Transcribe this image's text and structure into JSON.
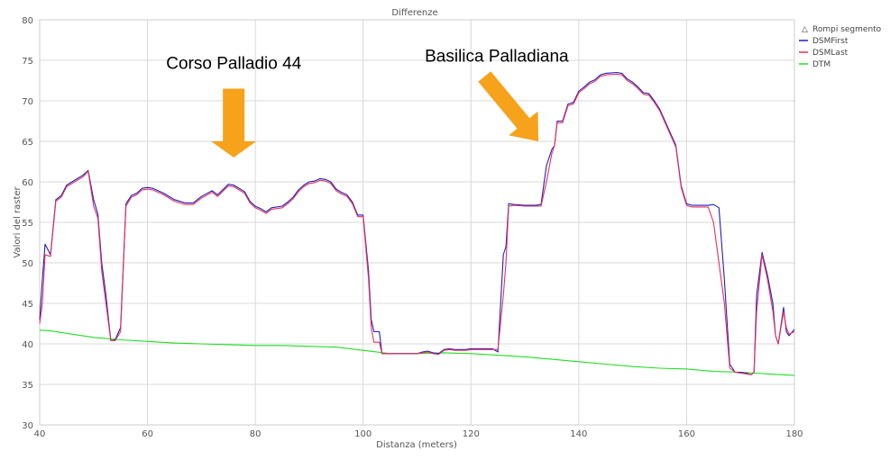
{
  "chart_data": {
    "type": "line",
    "title": "Differenze",
    "xlabel": "Distanza (meters)",
    "ylabel": "Valori del raster",
    "xlim": [
      40,
      180
    ],
    "ylim": [
      30,
      80
    ],
    "x_ticks": [
      40,
      60,
      80,
      100,
      120,
      140,
      160,
      180
    ],
    "y_ticks": [
      30,
      35,
      40,
      45,
      50,
      55,
      60,
      65,
      70,
      75,
      80
    ],
    "grid": true,
    "legend_position": "top-right",
    "legend_header": "Rompi segmento",
    "series": [
      {
        "name": "DSMFirst",
        "color": "#1f1fbf",
        "points": [
          [
            40,
            43
          ],
          [
            40.5,
            48
          ],
          [
            41,
            52.3
          ],
          [
            42,
            51
          ],
          [
            43,
            57.8
          ],
          [
            44,
            58.3
          ],
          [
            45,
            59.6
          ],
          [
            46,
            60
          ],
          [
            47,
            60.4
          ],
          [
            48,
            60.8
          ],
          [
            49,
            61.4
          ],
          [
            50,
            57.8
          ],
          [
            50.8,
            56
          ],
          [
            51.5,
            50
          ],
          [
            52.3,
            46
          ],
          [
            53.2,
            40.4
          ],
          [
            54,
            40.5
          ],
          [
            55,
            42
          ],
          [
            56,
            57.3
          ],
          [
            57,
            58.3
          ],
          [
            58,
            58.6
          ],
          [
            59,
            59.2
          ],
          [
            60,
            59.3
          ],
          [
            61,
            59.2
          ],
          [
            63,
            58.6
          ],
          [
            65,
            57.8
          ],
          [
            67,
            57.4
          ],
          [
            68.5,
            57.4
          ],
          [
            70,
            58.2
          ],
          [
            72,
            58.9
          ],
          [
            73,
            58.4
          ],
          [
            75,
            59.7
          ],
          [
            76,
            59.6
          ],
          [
            78,
            58.8
          ],
          [
            79,
            57.6
          ],
          [
            80,
            57
          ],
          [
            81,
            56.7
          ],
          [
            82,
            56.3
          ],
          [
            83,
            56.8
          ],
          [
            85,
            57
          ],
          [
            86,
            57.5
          ],
          [
            87,
            58.1
          ],
          [
            88,
            59
          ],
          [
            89,
            59.6
          ],
          [
            90,
            60
          ],
          [
            91,
            60.1
          ],
          [
            92,
            60.4
          ],
          [
            93,
            60.3
          ],
          [
            94,
            60
          ],
          [
            95,
            59.1
          ],
          [
            96,
            58.7
          ],
          [
            97,
            58.4
          ],
          [
            98,
            57.5
          ],
          [
            99,
            55.9
          ],
          [
            100,
            55.9
          ],
          [
            101,
            49
          ],
          [
            101.5,
            43
          ],
          [
            102,
            41.5
          ],
          [
            103,
            41.5
          ],
          [
            103.5,
            38.8
          ],
          [
            105,
            38.8
          ],
          [
            108,
            38.8
          ],
          [
            110,
            38.8
          ],
          [
            111,
            39
          ],
          [
            112,
            39.1
          ],
          [
            113,
            38.9
          ],
          [
            114,
            38.8
          ],
          [
            115,
            39.3
          ],
          [
            116,
            39.4
          ],
          [
            117,
            39.3
          ],
          [
            119,
            39.3
          ],
          [
            120,
            39.4
          ],
          [
            122,
            39.4
          ],
          [
            124,
            39.4
          ],
          [
            125,
            39
          ],
          [
            126,
            51
          ],
          [
            126.5,
            52
          ],
          [
            127,
            57.3
          ],
          [
            128,
            57.2
          ],
          [
            130,
            57.1
          ],
          [
            132,
            57.1
          ],
          [
            133,
            57.2
          ],
          [
            134,
            62
          ],
          [
            135,
            64
          ],
          [
            135.5,
            64.5
          ],
          [
            136,
            67.5
          ],
          [
            137,
            67.5
          ],
          [
            138,
            69.6
          ],
          [
            139,
            69.8
          ],
          [
            140,
            71.2
          ],
          [
            141,
            71.7
          ],
          [
            142,
            72.3
          ],
          [
            143,
            72.6
          ],
          [
            144,
            73.2
          ],
          [
            145,
            73.4
          ],
          [
            147,
            73.5
          ],
          [
            148,
            73.4
          ],
          [
            149,
            72.7
          ],
          [
            150,
            72.3
          ],
          [
            151,
            71.7
          ],
          [
            152,
            71
          ],
          [
            153,
            70.9
          ],
          [
            154,
            70
          ],
          [
            155,
            69
          ],
          [
            156,
            67.5
          ],
          [
            157,
            66
          ],
          [
            158,
            64.5
          ],
          [
            159,
            59.5
          ],
          [
            160,
            57.3
          ],
          [
            161,
            57.1
          ],
          [
            163,
            57.1
          ],
          [
            164,
            57.1
          ],
          [
            165,
            57.2
          ],
          [
            166,
            56.8
          ],
          [
            167,
            48
          ],
          [
            168,
            37.5
          ],
          [
            169,
            36.5
          ],
          [
            170,
            36.5
          ],
          [
            171,
            36.4
          ],
          [
            172,
            36.2
          ],
          [
            172.5,
            36.5
          ],
          [
            173,
            46
          ],
          [
            174,
            51.3
          ],
          [
            175,
            48.5
          ],
          [
            176,
            45
          ],
          [
            176.5,
            41
          ],
          [
            177,
            40
          ],
          [
            178,
            44.5
          ],
          [
            178.5,
            41.5
          ],
          [
            179,
            41
          ],
          [
            180,
            41.8
          ]
        ]
      },
      {
        "name": "DSMLast",
        "color": "#e8315a",
        "points": [
          [
            40,
            42.5
          ],
          [
            40.5,
            45
          ],
          [
            41,
            51
          ],
          [
            42,
            50.8
          ],
          [
            43,
            57.6
          ],
          [
            44,
            58.1
          ],
          [
            45,
            59.4
          ],
          [
            46,
            59.8
          ],
          [
            47,
            60.2
          ],
          [
            48,
            60.6
          ],
          [
            49,
            61.3
          ],
          [
            50,
            57
          ],
          [
            50.8,
            55.5
          ],
          [
            51.5,
            49
          ],
          [
            52.3,
            45
          ],
          [
            53.2,
            40.4
          ],
          [
            54,
            40.4
          ],
          [
            55,
            41.5
          ],
          [
            56,
            57
          ],
          [
            57,
            58.1
          ],
          [
            58,
            58.4
          ],
          [
            59,
            59
          ],
          [
            60,
            59.1
          ],
          [
            61,
            59
          ],
          [
            63,
            58.4
          ],
          [
            65,
            57.6
          ],
          [
            67,
            57.2
          ],
          [
            68.5,
            57.2
          ],
          [
            70,
            58
          ],
          [
            72,
            58.7
          ],
          [
            73,
            58.2
          ],
          [
            75,
            59.5
          ],
          [
            76,
            59.4
          ],
          [
            78,
            58.6
          ],
          [
            79,
            57.4
          ],
          [
            80,
            56.8
          ],
          [
            81,
            56.5
          ],
          [
            82,
            56.1
          ],
          [
            83,
            56.6
          ],
          [
            85,
            56.8
          ],
          [
            86,
            57.3
          ],
          [
            87,
            57.9
          ],
          [
            88,
            58.8
          ],
          [
            89,
            59.4
          ],
          [
            90,
            59.8
          ],
          [
            91,
            59.9
          ],
          [
            92,
            60.2
          ],
          [
            93,
            60.1
          ],
          [
            94,
            59.8
          ],
          [
            95,
            58.9
          ],
          [
            96,
            58.5
          ],
          [
            97,
            58.2
          ],
          [
            98,
            57.3
          ],
          [
            99,
            55.7
          ],
          [
            100,
            55.7
          ],
          [
            101,
            48
          ],
          [
            101.5,
            42
          ],
          [
            102,
            40.2
          ],
          [
            103,
            40.2
          ],
          [
            103.5,
            38.8
          ],
          [
            105,
            38.8
          ],
          [
            108,
            38.8
          ],
          [
            110,
            38.8
          ],
          [
            111,
            38.9
          ],
          [
            112,
            39
          ],
          [
            113,
            38.8
          ],
          [
            114,
            38.7
          ],
          [
            115,
            39.2
          ],
          [
            116,
            39.3
          ],
          [
            117,
            39.2
          ],
          [
            119,
            39.2
          ],
          [
            120,
            39.3
          ],
          [
            122,
            39.3
          ],
          [
            124,
            39.3
          ],
          [
            125,
            39.3
          ],
          [
            126,
            46
          ],
          [
            126.5,
            50
          ],
          [
            127,
            57
          ],
          [
            128,
            57.1
          ],
          [
            130,
            57
          ],
          [
            132,
            57
          ],
          [
            133,
            57
          ],
          [
            134,
            60
          ],
          [
            135,
            63.5
          ],
          [
            135.5,
            64.5
          ],
          [
            136,
            67.3
          ],
          [
            137,
            67.3
          ],
          [
            138,
            69.4
          ],
          [
            139,
            69.6
          ],
          [
            140,
            71
          ],
          [
            141,
            71.5
          ],
          [
            142,
            72.1
          ],
          [
            143,
            72.4
          ],
          [
            144,
            73
          ],
          [
            145,
            73.2
          ],
          [
            147,
            73.3
          ],
          [
            148,
            73.2
          ],
          [
            149,
            72.5
          ],
          [
            150,
            72.1
          ],
          [
            151,
            71.5
          ],
          [
            152,
            70.8
          ],
          [
            153,
            70.7
          ],
          [
            154,
            69.8
          ],
          [
            155,
            68.8
          ],
          [
            156,
            67.3
          ],
          [
            157,
            65.8
          ],
          [
            158,
            64.3
          ],
          [
            159,
            59.3
          ],
          [
            160,
            57.1
          ],
          [
            161,
            56.9
          ],
          [
            163,
            56.9
          ],
          [
            164,
            56.9
          ],
          [
            165,
            55
          ],
          [
            166,
            50
          ],
          [
            167,
            45
          ],
          [
            168,
            37
          ],
          [
            169,
            36.5
          ],
          [
            170,
            36.4
          ],
          [
            171,
            36.3
          ],
          [
            172,
            36.2
          ],
          [
            172.5,
            36.5
          ],
          [
            173,
            44
          ],
          [
            174,
            51
          ],
          [
            175,
            48
          ],
          [
            176,
            44
          ],
          [
            176.5,
            41
          ],
          [
            177,
            40
          ],
          [
            178,
            44
          ],
          [
            178.5,
            42
          ],
          [
            179,
            41.2
          ],
          [
            180,
            41.5
          ]
        ]
      },
      {
        "name": "DTM",
        "color": "#22dd22",
        "points": [
          [
            40,
            41.7
          ],
          [
            42,
            41.6
          ],
          [
            45,
            41.3
          ],
          [
            50,
            40.8
          ],
          [
            55,
            40.5
          ],
          [
            60,
            40.3
          ],
          [
            65,
            40.1
          ],
          [
            70,
            40
          ],
          [
            75,
            39.9
          ],
          [
            80,
            39.8
          ],
          [
            85,
            39.8
          ],
          [
            90,
            39.7
          ],
          [
            95,
            39.6
          ],
          [
            100,
            39.2
          ],
          [
            105,
            38.8
          ],
          [
            110,
            38.8
          ],
          [
            115,
            38.9
          ],
          [
            120,
            38.8
          ],
          [
            125,
            38.6
          ],
          [
            130,
            38.4
          ],
          [
            135,
            38.1
          ],
          [
            140,
            37.8
          ],
          [
            145,
            37.5
          ],
          [
            150,
            37.2
          ],
          [
            155,
            37
          ],
          [
            160,
            36.9
          ],
          [
            165,
            36.6
          ],
          [
            170,
            36.5
          ],
          [
            175,
            36.3
          ],
          [
            180,
            36.1
          ]
        ]
      }
    ],
    "annotations": [
      {
        "text": "Corso Palladio 44",
        "x": 73,
        "y": 74.5,
        "arrow": "down",
        "arrow_x": 76,
        "arrow_y_top": 71.5,
        "arrow_y_tip": 63
      },
      {
        "text": "Basilica Palladiana",
        "x": 127,
        "y": 75.5,
        "arrow": "down-right",
        "arrow_from": [
          122.5,
          73
        ],
        "arrow_to": [
          132.5,
          65
        ]
      }
    ],
    "arrow_color": "#f7a21b"
  }
}
